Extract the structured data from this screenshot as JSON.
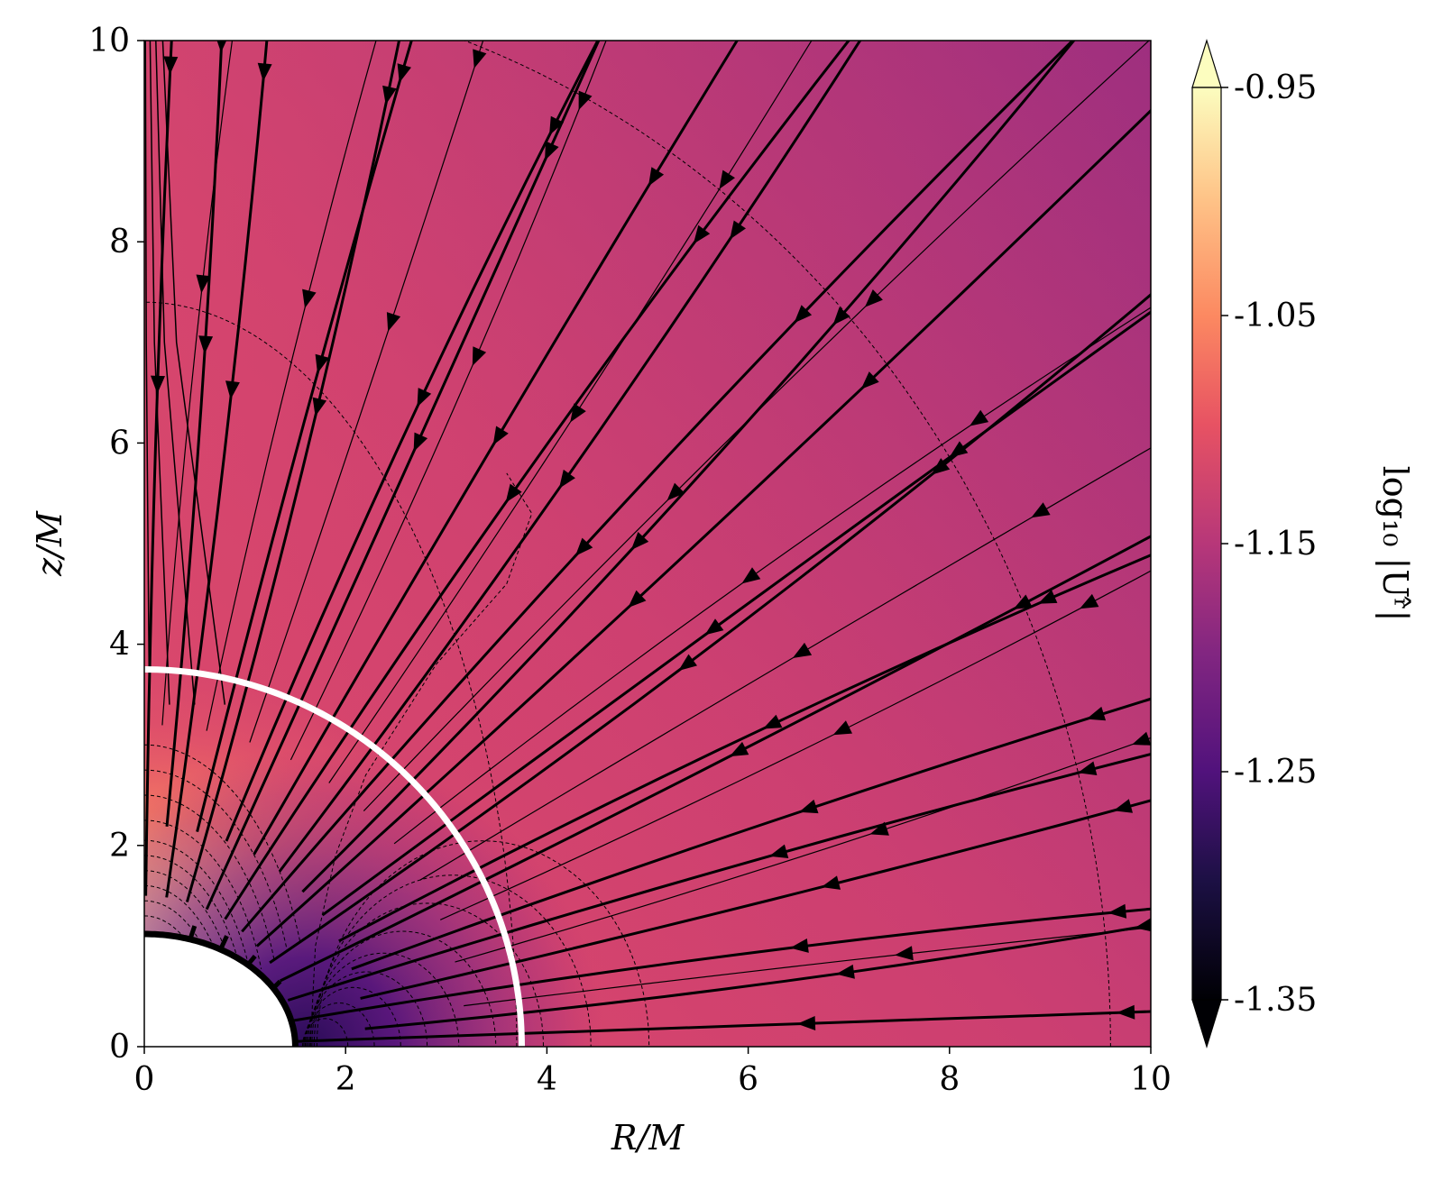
{
  "chart_data": {
    "type": "heatmap",
    "subtype": "streamplot-with-contours",
    "title": "",
    "xlabel": "R/M",
    "ylabel": "z/M",
    "xlim": [
      0,
      10
    ],
    "ylim": [
      0,
      10
    ],
    "xticks": [
      "0",
      "2",
      "4",
      "6",
      "8",
      "10"
    ],
    "yticks": [
      "0",
      "2",
      "4",
      "6",
      "8",
      "10"
    ],
    "grid": false,
    "colormap": "magma",
    "colorbar": {
      "label": "log₁₀ |Uʳ̂|",
      "range": [
        -1.35,
        -0.95
      ],
      "ticks": [
        "-0.95",
        "-1.05",
        "-1.15",
        "-1.25",
        "-1.35"
      ],
      "extend": "both"
    },
    "inner_boundary_radius": 1.12,
    "horizon_radius_equator": 1.5,
    "white_circle_radius": 3.75,
    "field": {
      "background_colors": {
        "near_pole_max": "#fcfdbf",
        "near_pole": "#fb8761",
        "mid": "#d9466b",
        "outer": "#b73779",
        "outer_right": "#a3307e",
        "equator_min": "#51127c"
      }
    },
    "streamlines": {
      "direction": "inflow",
      "color": "#000000"
    }
  }
}
